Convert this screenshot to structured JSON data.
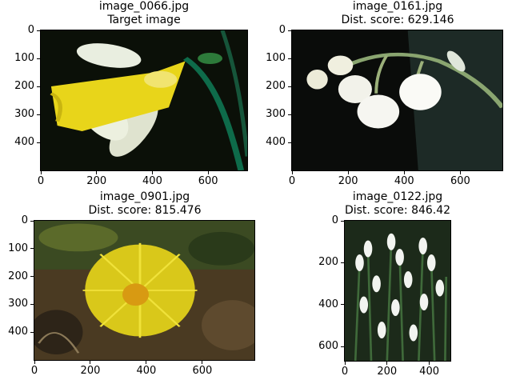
{
  "chart_data": [
    {
      "type": "image",
      "title": "image_0066.jpg",
      "subtitle": "Target image",
      "image_size": [
        740,
        500
      ],
      "xlim": [
        0,
        740
      ],
      "ylim": [
        500,
        0
      ],
      "xticks": [
        0,
        200,
        400,
        600
      ],
      "yticks": [
        0,
        100,
        200,
        300,
        400
      ],
      "content": "yellow-white daffodil on dark background"
    },
    {
      "type": "image",
      "title": "image_0161.jpg",
      "subtitle": "Dist. score: 629.146",
      "image_size": [
        750,
        500
      ],
      "xlim": [
        0,
        750
      ],
      "ylim": [
        500,
        0
      ],
      "xticks": [
        0,
        200,
        400,
        600
      ],
      "yticks": [
        0,
        100,
        200,
        300,
        400
      ],
      "content": "white bell-shaped flowers on curved stem"
    },
    {
      "type": "image",
      "title": "image_0901.jpg",
      "subtitle": "Dist. score: 815.476",
      "image_size": [
        786,
        500
      ],
      "xlim": [
        0,
        786
      ],
      "ylim": [
        500,
        0
      ],
      "xticks": [
        0,
        200,
        400,
        600
      ],
      "yticks": [
        0,
        100,
        200,
        300,
        400
      ],
      "content": "yellow coltsfoot flower on brown ground"
    },
    {
      "type": "image",
      "title": "image_0122.jpg",
      "subtitle": "Dist. score: 846.42",
      "image_size": [
        500,
        667
      ],
      "xlim": [
        0,
        500
      ],
      "ylim": [
        667,
        0
      ],
      "xticks": [
        0,
        200,
        400
      ],
      "yticks": [
        0,
        200,
        400,
        600
      ],
      "content": "cluster of white snowdrops with green leaves"
    }
  ]
}
